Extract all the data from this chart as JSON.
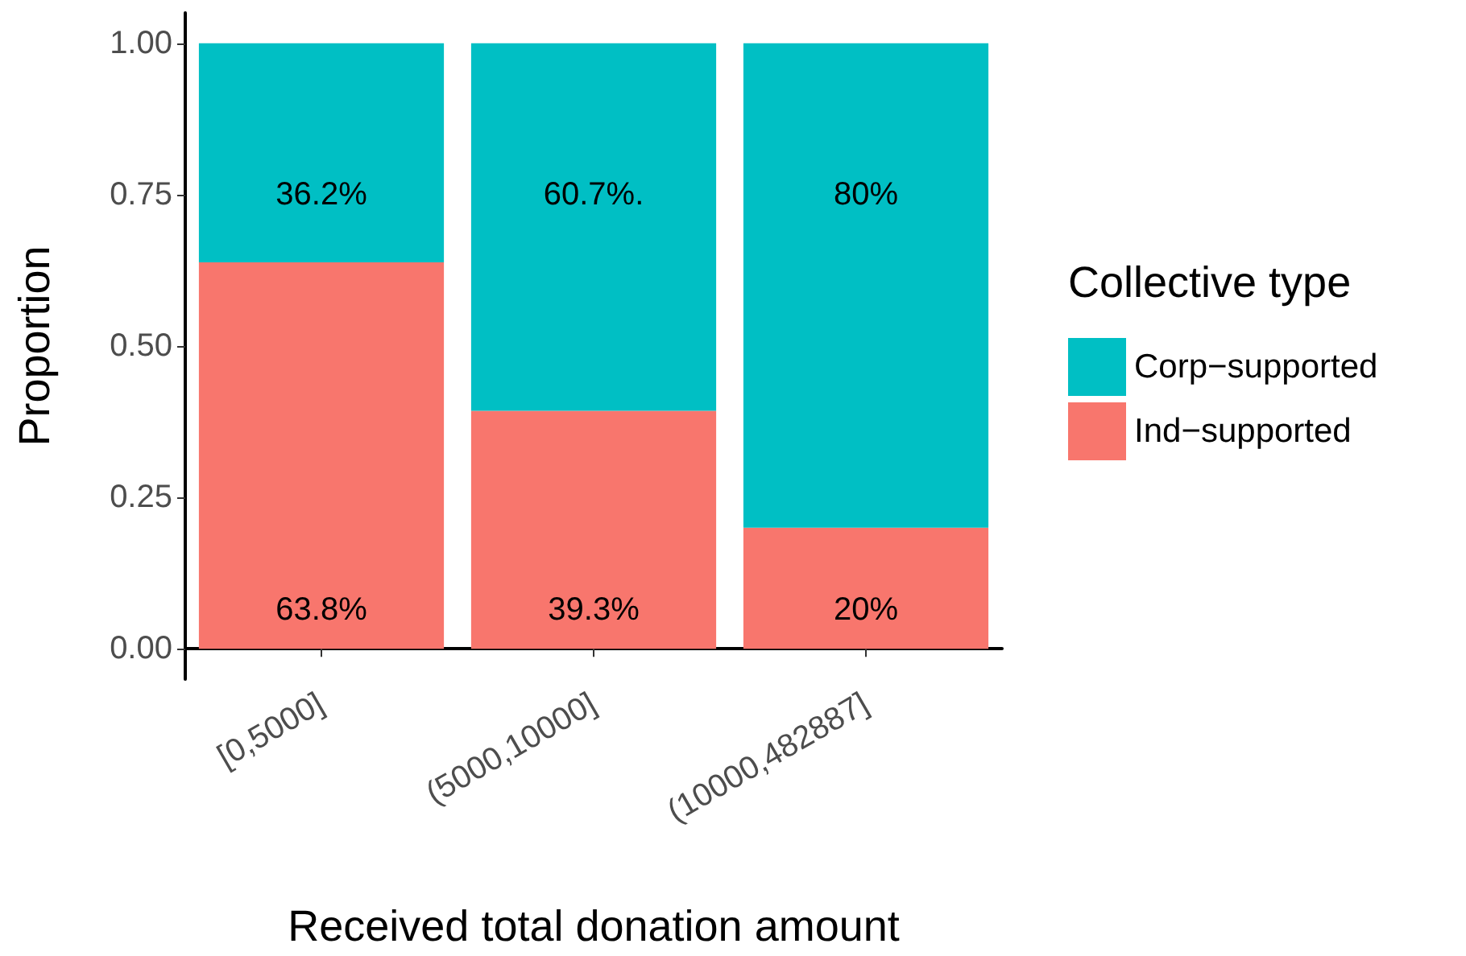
{
  "chart_data": {
    "type": "bar",
    "stacked": true,
    "xlabel": "Received total donation amount",
    "ylabel": "Proportion",
    "legend_title": "Collective type",
    "legend": "right",
    "grid": false,
    "categories": [
      "[0,5000]",
      "(5000,10000]",
      "(10000,482887]"
    ],
    "series": [
      {
        "name": "Ind−supported",
        "color": "#f8766d",
        "values": [
          0.638,
          0.393,
          0.2
        ],
        "value_labels": [
          "63.8%",
          "39.3%",
          "20%"
        ]
      },
      {
        "name": "Corp−supported",
        "color": "#00bfc4",
        "values": [
          0.362,
          0.607,
          0.8
        ],
        "value_labels": [
          "36.2%",
          "60.7%.",
          "80%"
        ]
      }
    ],
    "ylim": [
      -0.05,
      1.05
    ],
    "yticks": [
      {
        "value": 0,
        "label": "0.00"
      },
      {
        "value": 0.25,
        "label": "0.25"
      },
      {
        "value": 0.5,
        "label": "0.50"
      },
      {
        "value": 0.75,
        "label": "0.75"
      },
      {
        "value": 1,
        "label": "1.00"
      }
    ]
  }
}
